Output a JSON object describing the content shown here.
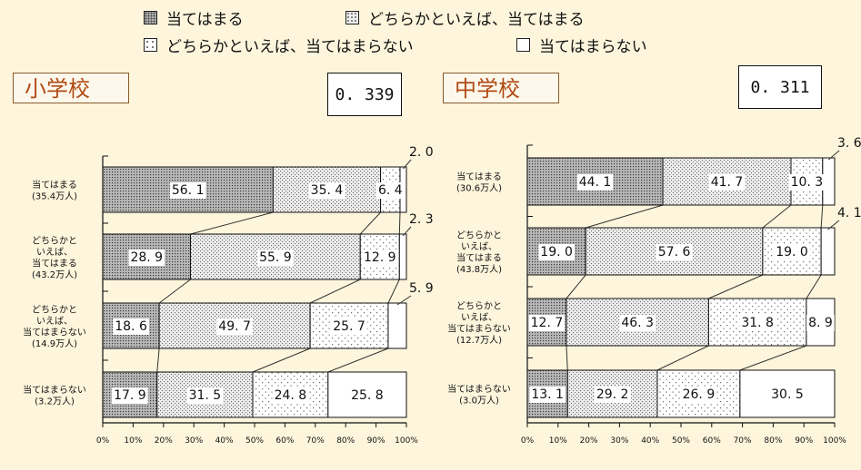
{
  "legend": [
    {
      "label": "当てはまる",
      "pattern": "p1"
    },
    {
      "label": "どちらかといえば、当てはまる",
      "pattern": "p2"
    },
    {
      "label": "どちらかといえば、当てはまらない",
      "pattern": "p3"
    },
    {
      "label": "当てはまらない",
      "pattern": "p4"
    }
  ],
  "panels": [
    {
      "title": "小学校",
      "coefficient": "0. 339"
    },
    {
      "title": "中学校",
      "coefficient": "0. 311"
    }
  ],
  "colors": {
    "background": "#fdf5dc",
    "title_text": "#b04a14",
    "title_border": "#8a5a2b"
  },
  "chart_data": [
    {
      "type": "bar",
      "stacked": true,
      "orientation": "horizontal",
      "title": "小学校",
      "categories": [
        [
          "当てはまる",
          "(35.4万人)"
        ],
        [
          "どちらかと",
          "いえば、",
          "当てはまる",
          "(43.2万人)"
        ],
        [
          "どちらかと",
          "いえば、",
          "当てはまらない",
          "(14.9万人)"
        ],
        [
          "当てはまらない",
          "(3.2万人)"
        ]
      ],
      "series": [
        {
          "name": "当てはまる",
          "values": [
            56.1,
            28.9,
            18.6,
            17.9
          ]
        },
        {
          "name": "どちらかといえば、当てはまる",
          "values": [
            35.4,
            55.9,
            49.7,
            31.5
          ]
        },
        {
          "name": "どちらかといえば、当てはまらない",
          "values": [
            6.4,
            12.9,
            25.7,
            24.8
          ]
        },
        {
          "name": "当てはまらない",
          "values": [
            2.0,
            2.3,
            5.9,
            25.8
          ]
        }
      ],
      "value_labels": [
        [
          "56. 1",
          "35. 4",
          "6. 4",
          "2. 0"
        ],
        [
          "28. 9",
          "55. 9",
          "12. 9",
          "2. 3"
        ],
        [
          "18. 6",
          "49. 7",
          "25. 7",
          "5. 9"
        ],
        [
          "17. 9",
          "31. 5",
          "24. 8",
          "25. 8"
        ]
      ],
      "xticks": [
        "0%",
        "10%",
        "20%",
        "30%",
        "40%",
        "50%",
        "60%",
        "70%",
        "80%",
        "90%",
        "100%"
      ],
      "xlim": [
        0,
        100
      ]
    },
    {
      "type": "bar",
      "stacked": true,
      "orientation": "horizontal",
      "title": "中学校",
      "categories": [
        [
          "当てはまる",
          "(30.6万人)"
        ],
        [
          "どちらかと",
          "いえば、",
          "当てはまる",
          "(43.8万人)"
        ],
        [
          "どちらかと",
          "いえば、",
          "当てはまらない",
          "(12.7万人)"
        ],
        [
          "当てはまらない",
          "(3.0万人)"
        ]
      ],
      "series": [
        {
          "name": "当てはまる",
          "values": [
            44.1,
            19.0,
            12.7,
            13.1
          ]
        },
        {
          "name": "どちらかといえば、当てはまる",
          "values": [
            41.7,
            57.6,
            46.3,
            29.2
          ]
        },
        {
          "name": "どちらかといえば、当てはまらない",
          "values": [
            10.3,
            19.0,
            31.8,
            26.9
          ]
        },
        {
          "name": "当てはまらない",
          "values": [
            3.6,
            4.1,
            8.9,
            30.5
          ]
        }
      ],
      "value_labels": [
        [
          "44. 1",
          "41. 7",
          "10. 3",
          "3. 6"
        ],
        [
          "19. 0",
          "57. 6",
          "19. 0",
          "4. 1"
        ],
        [
          "12. 7",
          "46. 3",
          "31. 8",
          "8. 9"
        ],
        [
          "13. 1",
          "29. 2",
          "26. 9",
          "30. 5"
        ]
      ],
      "xticks": [
        "0%",
        "10%",
        "20%",
        "30%",
        "40%",
        "50%",
        "60%",
        "70%",
        "80%",
        "90%",
        "100%"
      ],
      "xlim": [
        0,
        100
      ]
    }
  ]
}
